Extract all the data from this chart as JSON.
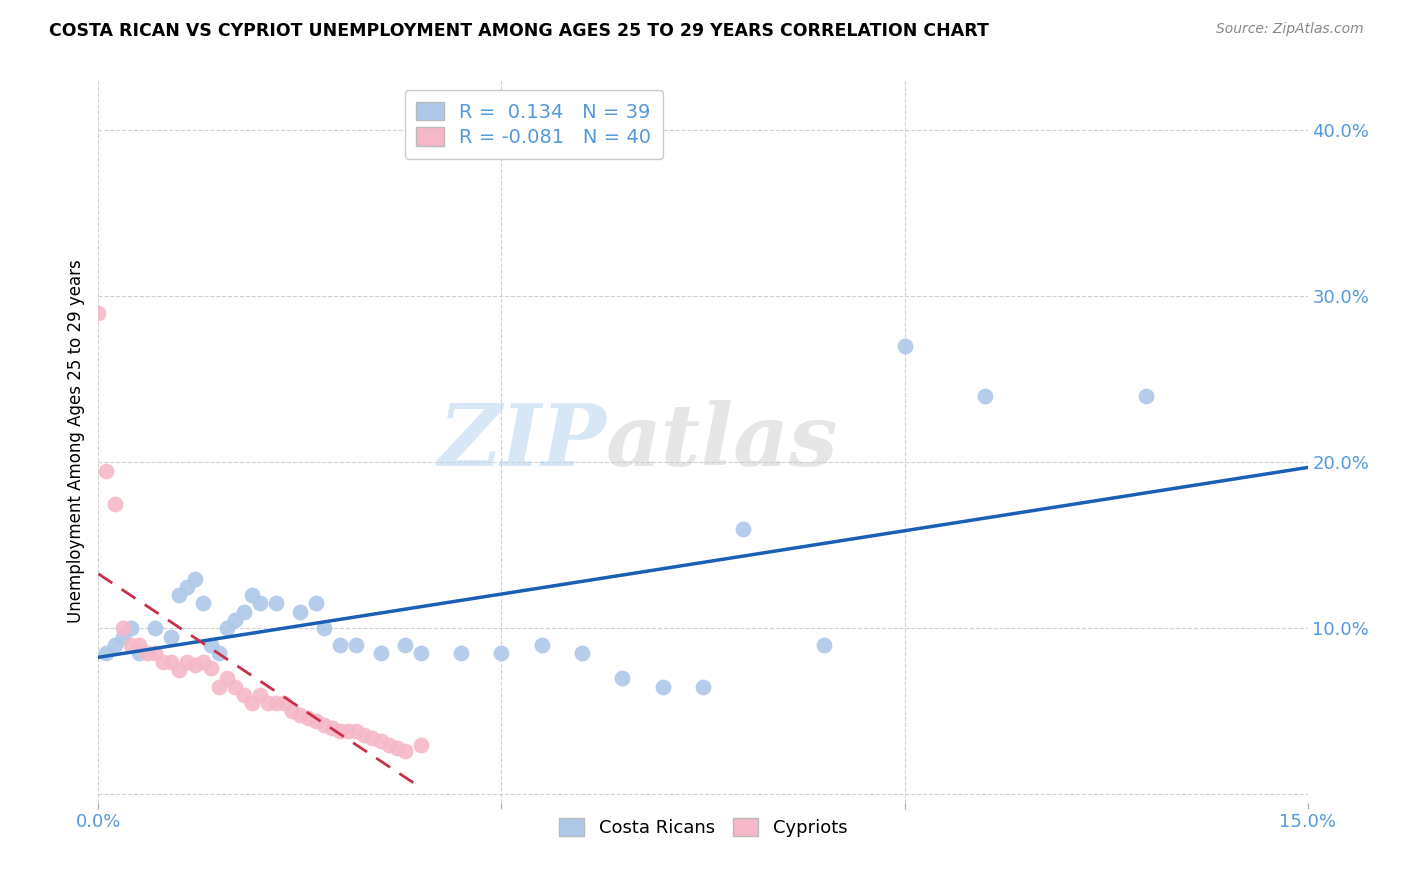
{
  "title": "COSTA RICAN VS CYPRIOT UNEMPLOYMENT AMONG AGES 25 TO 29 YEARS CORRELATION CHART",
  "source": "Source: ZipAtlas.com",
  "ylabel": "Unemployment Among Ages 25 to 29 years",
  "xlim": [
    0.0,
    0.15
  ],
  "ylim": [
    -0.005,
    0.43
  ],
  "xticks": [
    0.0,
    0.05,
    0.1,
    0.15
  ],
  "xtick_labels": [
    "0.0%",
    "",
    "",
    "15.0%"
  ],
  "ytick_labels": [
    "",
    "10.0%",
    "20.0%",
    "30.0%",
    "40.0%"
  ],
  "yticks": [
    0.0,
    0.1,
    0.2,
    0.3,
    0.4
  ],
  "watermark_zip": "ZIP",
  "watermark_atlas": "atlas",
  "legend_cr_r": " 0.134",
  "legend_cr_n": "39",
  "legend_cy_r": "-0.081",
  "legend_cy_n": "40",
  "cr_color": "#adc8e8",
  "cy_color": "#f5b8c8",
  "cr_line_color": "#1a5fb4",
  "cy_line_color": "#c8304a",
  "background_color": "#ffffff",
  "grid_color": "#cccccc",
  "tick_color": "#5599dd",
  "costa_ricans_x": [
    0.001,
    0.002,
    0.003,
    0.004,
    0.005,
    0.007,
    0.009,
    0.01,
    0.011,
    0.012,
    0.013,
    0.014,
    0.015,
    0.016,
    0.017,
    0.018,
    0.019,
    0.02,
    0.022,
    0.025,
    0.027,
    0.028,
    0.03,
    0.032,
    0.035,
    0.038,
    0.04,
    0.045,
    0.05,
    0.055,
    0.06,
    0.065,
    0.07,
    0.075,
    0.08,
    0.09,
    0.1,
    0.11,
    0.13
  ],
  "costa_ricans_y": [
    0.085,
    0.09,
    0.095,
    0.1,
    0.085,
    0.1,
    0.095,
    0.12,
    0.125,
    0.13,
    0.115,
    0.09,
    0.085,
    0.1,
    0.105,
    0.11,
    0.12,
    0.115,
    0.115,
    0.11,
    0.115,
    0.1,
    0.09,
    0.09,
    0.085,
    0.09,
    0.085,
    0.085,
    0.085,
    0.09,
    0.085,
    0.07,
    0.065,
    0.065,
    0.16,
    0.09,
    0.27,
    0.24,
    0.24
  ],
  "cypriots_x": [
    0.0,
    0.001,
    0.002,
    0.003,
    0.004,
    0.005,
    0.006,
    0.007,
    0.008,
    0.009,
    0.01,
    0.011,
    0.012,
    0.013,
    0.014,
    0.015,
    0.016,
    0.017,
    0.018,
    0.019,
    0.02,
    0.021,
    0.022,
    0.023,
    0.024,
    0.025,
    0.026,
    0.027,
    0.028,
    0.029,
    0.03,
    0.031,
    0.032,
    0.033,
    0.034,
    0.035,
    0.036,
    0.037,
    0.038,
    0.04
  ],
  "cypriots_y": [
    0.29,
    0.195,
    0.175,
    0.1,
    0.09,
    0.09,
    0.085,
    0.085,
    0.08,
    0.08,
    0.075,
    0.08,
    0.078,
    0.08,
    0.076,
    0.065,
    0.07,
    0.065,
    0.06,
    0.055,
    0.06,
    0.055,
    0.055,
    0.055,
    0.05,
    0.048,
    0.046,
    0.044,
    0.042,
    0.04,
    0.038,
    0.038,
    0.038,
    0.036,
    0.034,
    0.032,
    0.03,
    0.028,
    0.026,
    0.03
  ],
  "cr_trend_x": [
    0.0,
    0.15
  ],
  "cy_trend_x": [
    0.0,
    0.04
  ]
}
